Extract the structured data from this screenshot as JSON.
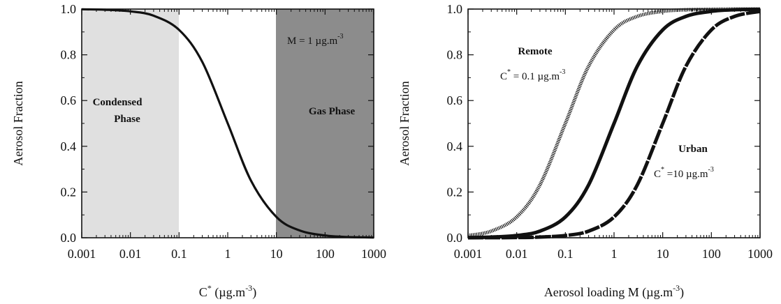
{
  "chart_data": [
    {
      "type": "line",
      "title": "",
      "xlabel": "C",
      "xlabel_sup": "*",
      "xlabel_units": " (µg.m",
      "xlabel_units_sup": "-3",
      "xlabel_close": ")",
      "ylabel": "Aerosol Fraction",
      "xscale": "log",
      "xlim": [
        0.001,
        1000
      ],
      "ylim": [
        0,
        1
      ],
      "x_ticks": [
        0.001,
        0.01,
        0.1,
        1,
        10,
        100,
        1000
      ],
      "x_tick_labels": [
        "0.001",
        "0.01",
        "0.1",
        "1",
        "10",
        "100",
        "1000"
      ],
      "y_ticks": [
        0,
        0.2,
        0.4,
        0.6,
        0.8,
        1.0
      ],
      "y_tick_labels": [
        "0.0",
        "0.2",
        "0.4",
        "0.6",
        "0.8",
        "1.0"
      ],
      "regions": [
        {
          "x_range": [
            0.001,
            0.1
          ],
          "color": "#e0e0e0",
          "label_lines": [
            "Condensed",
            "Phase"
          ]
        },
        {
          "x_range": [
            10,
            1000
          ],
          "color": "#8c8c8c",
          "label_lines": [
            "Gas Phase"
          ]
        }
      ],
      "annotation": {
        "text": "M = 1 µg.m",
        "sup": "-3"
      },
      "series": [
        {
          "x": [
            0.001,
            0.003,
            0.01,
            0.03,
            0.1,
            0.3,
            1,
            3,
            10,
            30,
            100,
            300,
            1000
          ],
          "values": [
            0.999,
            0.997,
            0.99,
            0.971,
            0.909,
            0.769,
            0.5,
            0.25,
            0.091,
            0.032,
            0.0099,
            0.0033,
            0.001
          ],
          "style": "solid",
          "color": "#111111"
        }
      ]
    },
    {
      "type": "line",
      "title": "",
      "xlabel": "Aerosol loading M (µg.m",
      "xlabel_sup": "-3",
      "xlabel_close": ")",
      "ylabel": "Aerosol Fraction",
      "xscale": "log",
      "xlim": [
        0.001,
        1000
      ],
      "ylim": [
        0,
        1
      ],
      "x_ticks": [
        0.001,
        0.01,
        0.1,
        1,
        10,
        100,
        1000
      ],
      "x_tick_labels": [
        "0.001",
        "0.01",
        "0.1",
        "1",
        "10",
        "100",
        "1000"
      ],
      "y_ticks": [
        0,
        0.2,
        0.4,
        0.6,
        0.8,
        1.0
      ],
      "y_tick_labels": [
        "0.0",
        "0.2",
        "0.4",
        "0.6",
        "0.8",
        "1.0"
      ],
      "annotations": [
        {
          "id": "remote",
          "title": "Remote",
          "line_prefix": "C",
          "line_sup": "*",
          "line_text": " = 0.1 µg.m",
          "line_sup2": "-3"
        },
        {
          "id": "urban",
          "title": "Urban",
          "line_prefix": "C",
          "line_sup": "*",
          "line_text": " =10 µg.m",
          "line_sup2": "-3"
        }
      ],
      "series": [
        {
          "x": [
            0.001,
            0.003,
            0.01,
            0.03,
            0.1,
            0.3,
            1,
            3,
            10,
            30,
            100,
            300,
            1000
          ],
          "values": [
            0.0099,
            0.029,
            0.091,
            0.231,
            0.5,
            0.75,
            0.909,
            0.968,
            0.99,
            0.997,
            0.999,
            1.0,
            1.0
          ],
          "style": "dotted",
          "color": "#111111"
        },
        {
          "x": [
            0.001,
            0.003,
            0.01,
            0.03,
            0.1,
            0.3,
            1,
            3,
            10,
            30,
            100,
            300,
            1000
          ],
          "values": [
            0.001,
            0.003,
            0.0099,
            0.029,
            0.091,
            0.231,
            0.5,
            0.75,
            0.909,
            0.968,
            0.99,
            0.997,
            0.999
          ],
          "style": "solid",
          "color": "#111111"
        },
        {
          "x": [
            0.001,
            0.003,
            0.01,
            0.03,
            0.1,
            0.3,
            1,
            3,
            10,
            30,
            100,
            300,
            1000
          ],
          "values": [
            0.0001,
            0.0003,
            0.001,
            0.003,
            0.0099,
            0.029,
            0.091,
            0.231,
            0.5,
            0.75,
            0.909,
            0.968,
            0.99
          ],
          "style": "dashed",
          "color": "#111111"
        }
      ]
    }
  ]
}
